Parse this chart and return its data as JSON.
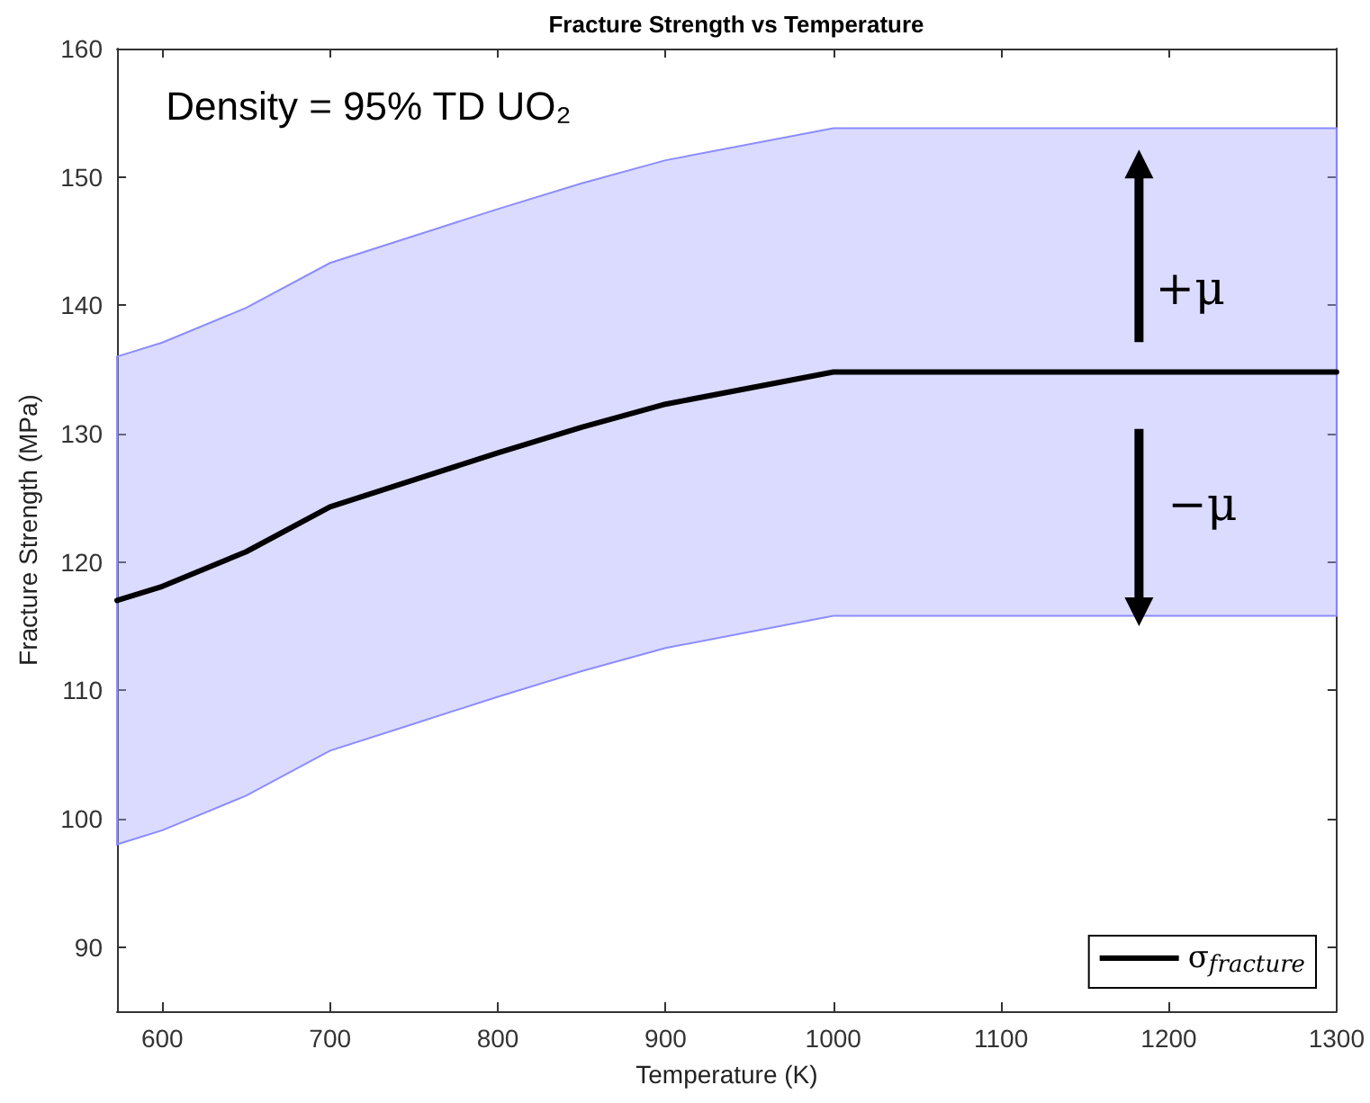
{
  "chart_data": {
    "type": "line",
    "title": "Fracture Strength vs Temperature",
    "xlabel": "Temperature (K)",
    "ylabel": "Fracture Strength (MPa)",
    "annotations": [
      "Density = 95% TD UO₂",
      "+μ",
      "−μ"
    ],
    "x": [
      573,
      600,
      650,
      700,
      750,
      800,
      850,
      900,
      1000,
      1300
    ],
    "series": [
      {
        "name": "σ$_{fracture}$",
        "color": "#000000",
        "values": [
          117,
          118.1,
          120.8,
          124.3,
          126.4,
          128.5,
          130.5,
          132.3,
          134.8,
          134.8
        ],
        "upper": [
          136,
          137.1,
          139.8,
          143.3,
          145.4,
          147.5,
          149.5,
          151.3,
          153.8,
          153.8
        ],
        "lower": [
          98,
          99.1,
          101.8,
          105.3,
          107.4,
          109.5,
          111.5,
          113.3,
          115.8,
          115.8
        ]
      }
    ],
    "xlim": [
      573,
      1300
    ],
    "xticks": [
      600,
      700,
      800,
      900,
      1000,
      1100,
      1200,
      1300
    ],
    "ylim": [
      85,
      160
    ],
    "yticks": [
      90,
      100,
      110,
      120,
      130,
      140,
      150,
      160
    ],
    "grid": false,
    "legend": "bottom right",
    "marker": "none",
    "line_style": "solid"
  }
}
